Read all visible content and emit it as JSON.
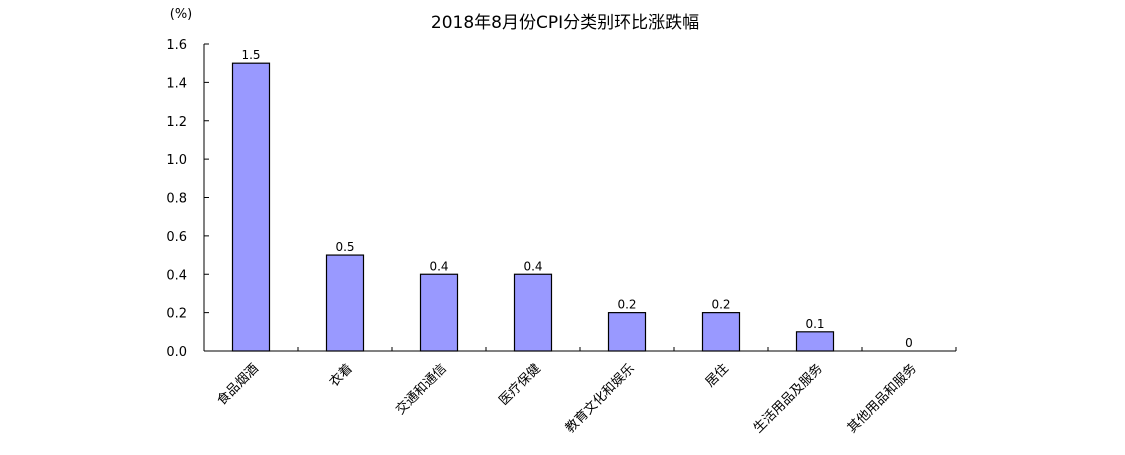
{
  "chart_data": {
    "type": "bar",
    "title": "2018年8月份CPI分类别环比涨跌幅",
    "ylabel": "",
    "xlabel": "",
    "unit_label": "(%)",
    "categories": [
      "食品烟酒",
      "衣着",
      "交通和通信",
      "医疗保健",
      "教育文化和娱乐",
      "居住",
      "生活用品及服务",
      "其他用品和服务"
    ],
    "values": [
      1.5,
      0.5,
      0.4,
      0.4,
      0.2,
      0.2,
      0.1,
      0
    ],
    "value_labels": [
      "1.5",
      "0.5",
      "0.4",
      "0.4",
      "0.2",
      "0.2",
      "0.1",
      "0"
    ],
    "ylim": [
      0,
      1.6
    ],
    "yticks": [
      0,
      0.2,
      0.4,
      0.6,
      0.8,
      1.0,
      1.2,
      1.4,
      1.6
    ],
    "ytick_labels": [
      "0.0",
      "0.2",
      "0.4",
      "0.6",
      "0.8",
      "1.0",
      "1.2",
      "1.4",
      "1.6"
    ],
    "grid": false,
    "legend": "none",
    "bar_color": "#9999ff",
    "bar_edge_color": "#000000"
  }
}
